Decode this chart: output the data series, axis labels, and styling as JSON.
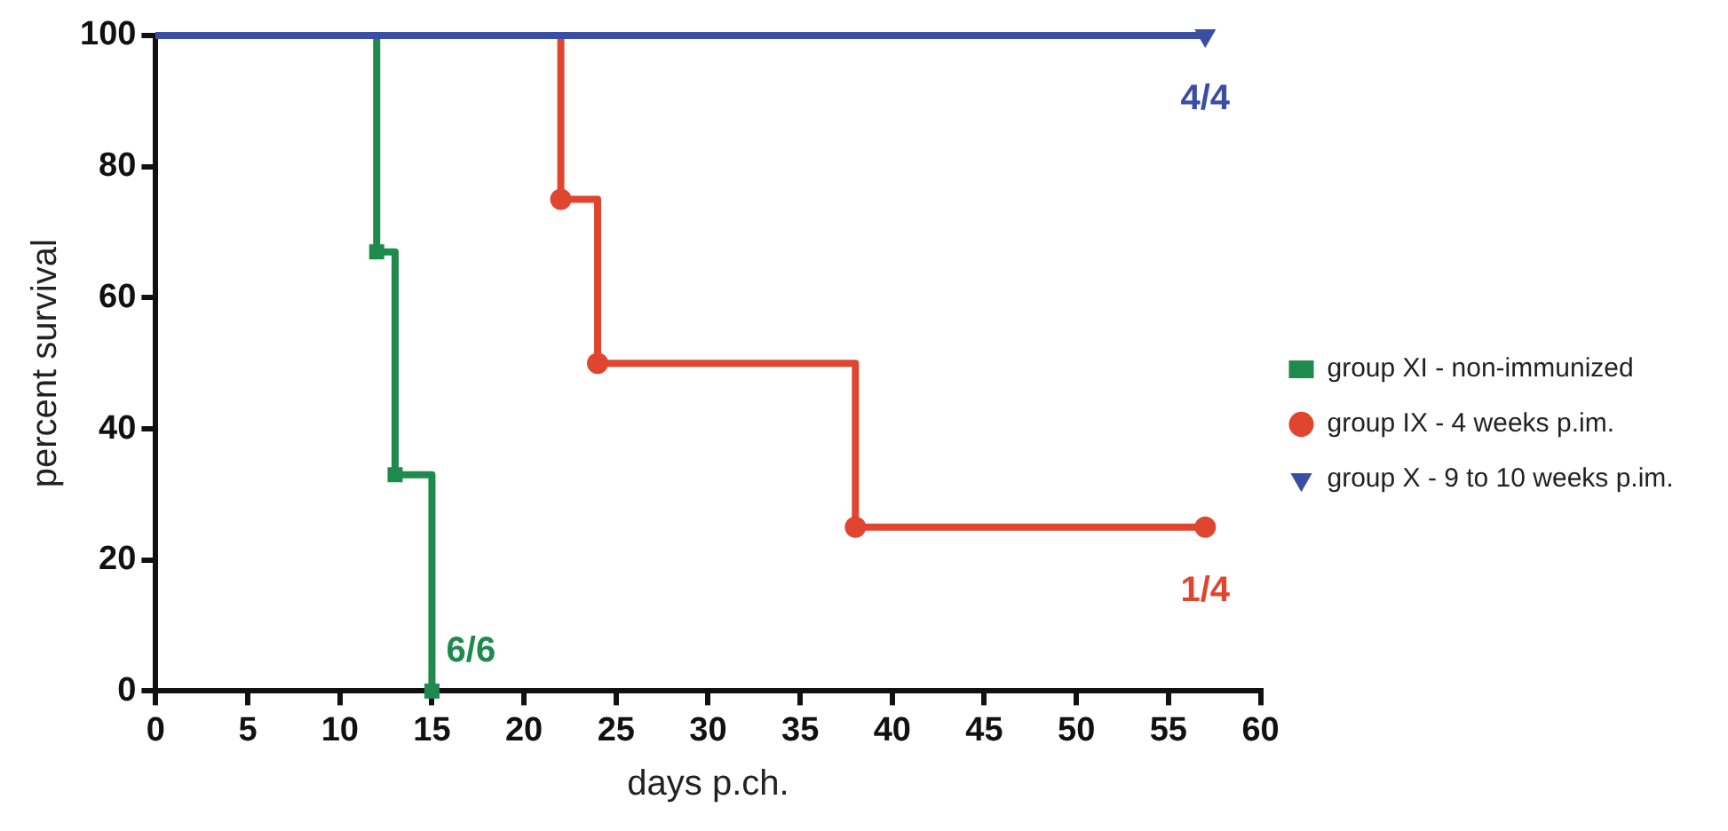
{
  "chart_data": {
    "type": "step",
    "xlabel": "days p.ch.",
    "ylabel": "percent survival",
    "xlim": [
      0,
      60
    ],
    "xticks": [
      0,
      5,
      10,
      15,
      20,
      25,
      30,
      35,
      40,
      45,
      50,
      55,
      60
    ],
    "ylim": [
      0,
      100
    ],
    "yticks": [
      0,
      20,
      40,
      60,
      80,
      100
    ],
    "grid": false,
    "legend": "right",
    "series": [
      {
        "name": "group XI - non-immunized",
        "color": "#1e8a4c",
        "marker": "square",
        "x": [
          0,
          12,
          13,
          15
        ],
        "values": [
          100,
          67,
          33,
          0
        ]
      },
      {
        "name": "group IX - 4 weeks p.im.",
        "color": "#e0452f",
        "marker": "circle",
        "x": [
          0,
          22,
          24,
          38,
          57
        ],
        "values": [
          100,
          75,
          50,
          25,
          25
        ]
      },
      {
        "name": "group X - 9 to 10 weeks p.im.",
        "color": "#3b4ea6",
        "marker": "triangle",
        "x": [
          0,
          57
        ],
        "values": [
          100,
          100
        ]
      }
    ],
    "annotations": [
      "6/6",
      "1/4",
      "4/4"
    ]
  }
}
